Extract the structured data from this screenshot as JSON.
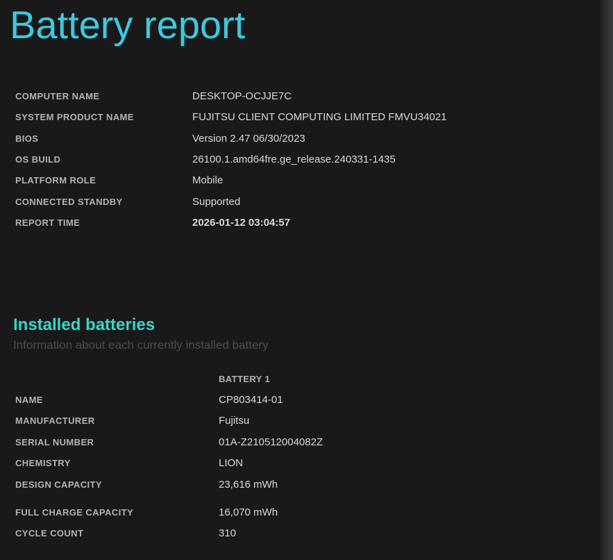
{
  "page": {
    "title": "Battery report"
  },
  "colors": {
    "background": "#191919",
    "title_accent": "#3fc8e1",
    "section_accent": "#37d7c8",
    "label_gray": "#b3b3b3",
    "value_gray": "#d9d9d9",
    "subtitle_gray": "#4c4c4c"
  },
  "system_info": {
    "rows": [
      {
        "label": "COMPUTER NAME",
        "value": "DESKTOP-OCJJE7C"
      },
      {
        "label": "SYSTEM PRODUCT NAME",
        "value": "FUJITSU CLIENT COMPUTING LIMITED FMVU34021"
      },
      {
        "label": "BIOS",
        "value": "Version 2.47 06/30/2023"
      },
      {
        "label": "OS BUILD",
        "value": "26100.1.amd64fre.ge_release.240331-1435"
      },
      {
        "label": "PLATFORM ROLE",
        "value": "Mobile"
      },
      {
        "label": "CONNECTED STANDBY",
        "value": "Supported"
      },
      {
        "label": "REPORT TIME",
        "value": "2026-01-12  03:04:57"
      }
    ]
  },
  "installed_batteries": {
    "heading": "Installed batteries",
    "subtitle": "Information about each currently installed battery",
    "column_header": "BATTERY 1",
    "rows": [
      {
        "label": "NAME",
        "value": "CP803414-01"
      },
      {
        "label": "MANUFACTURER",
        "value": "Fujitsu"
      },
      {
        "label": "SERIAL NUMBER",
        "value": "01A-Z210512004082Z"
      },
      {
        "label": "CHEMISTRY",
        "value": "LION"
      },
      {
        "label": "DESIGN CAPACITY",
        "value": "23,616 mWh"
      },
      {
        "label": "FULL CHARGE CAPACITY",
        "value": "16,070 mWh"
      },
      {
        "label": "CYCLE COUNT",
        "value": "310"
      }
    ]
  }
}
